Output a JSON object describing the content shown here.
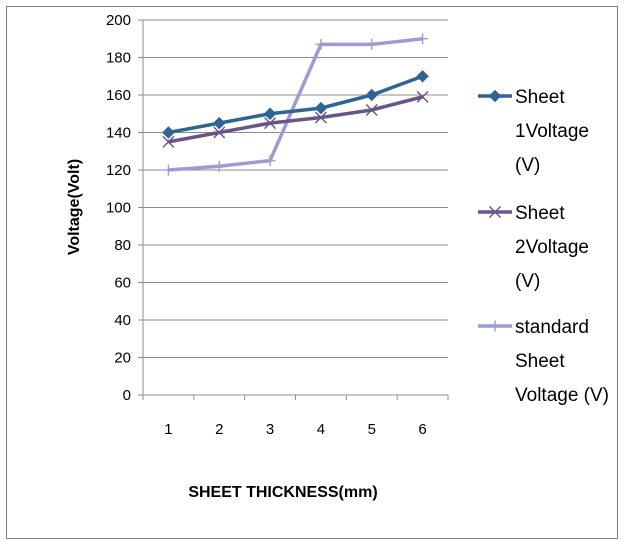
{
  "chart_data": {
    "type": "line",
    "title": "",
    "xlabel": "SHEET THICKNESS(mm)",
    "ylabel": "Voltage(Volt)",
    "categories": [
      "1",
      "2",
      "3",
      "4",
      "5",
      "6"
    ],
    "yticks": [
      "0",
      "20",
      "40",
      "60",
      "80",
      "100",
      "120",
      "140",
      "160",
      "180",
      "200"
    ],
    "ylim": [
      0,
      200
    ],
    "grid": true,
    "legend_position": "right",
    "series": [
      {
        "name": "Sheet 1Voltage (V)",
        "legend_lines": [
          "Sheet",
          "1Voltage",
          "(V)"
        ],
        "values": [
          140,
          145,
          150,
          153,
          160,
          170
        ],
        "color": "#2e6594",
        "marker": "diamond"
      },
      {
        "name": "Sheet 2Voltage (V)",
        "legend_lines": [
          "Sheet",
          "2Voltage",
          "(V)"
        ],
        "values": [
          135,
          140,
          145,
          148,
          152,
          159
        ],
        "color": "#6b5488",
        "marker": "x"
      },
      {
        "name": "standard Sheet Voltage (V)",
        "legend_lines": [
          "standard",
          "Sheet",
          "Voltage (V)"
        ],
        "values": [
          120,
          122,
          125,
          187,
          187,
          190
        ],
        "color": "#9c9bd6",
        "marker": "plus"
      }
    ]
  }
}
